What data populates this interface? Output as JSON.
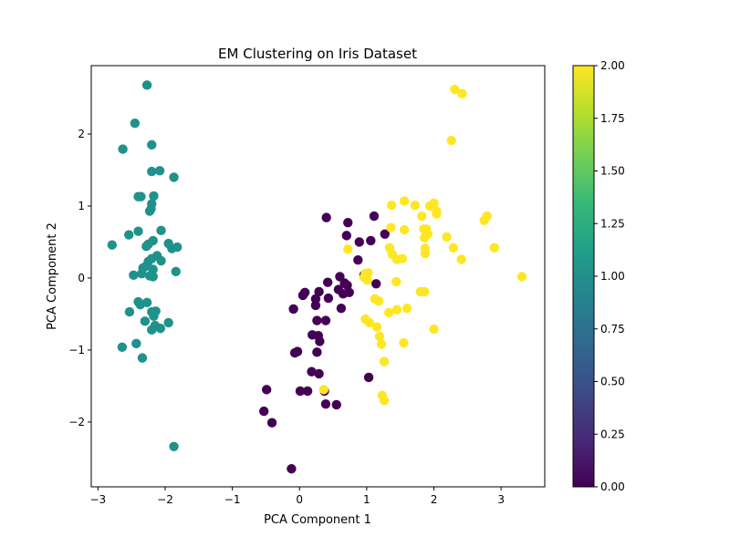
{
  "chart_data": {
    "type": "scatter",
    "title": "EM Clustering on Iris Dataset",
    "xlabel": "PCA Component 1",
    "ylabel": "PCA Component 2",
    "xlim": [
      -3.1,
      3.65
    ],
    "ylim": [
      -2.9,
      2.95
    ],
    "xticks": [
      -3,
      -2,
      -1,
      0,
      1,
      2,
      3
    ],
    "yticks": [
      -2,
      -1,
      0,
      1,
      2
    ],
    "xtick_labels": [
      "−3",
      "−2",
      "−1",
      "0",
      "1",
      "2",
      "3"
    ],
    "ytick_labels": [
      "−2",
      "−1",
      "0",
      "1",
      "2"
    ],
    "grid": false,
    "colormap": "viridis",
    "colorbar": {
      "range": [
        0.0,
        2.0
      ],
      "ticks": [
        "0.00",
        "0.25",
        "0.50",
        "0.75",
        "1.00",
        "1.25",
        "1.50",
        "1.75",
        "2.00"
      ],
      "stops": [
        "#440154",
        "#482878",
        "#3e4a89",
        "#31688e",
        "#26828e",
        "#1f9e89",
        "#35b779",
        "#6ece58",
        "#b5de2b",
        "#fde725"
      ]
    },
    "series": [
      {
        "cluster": 1,
        "color": "#21918c",
        "points": [
          [
            -2.27,
            2.68
          ],
          [
            -2.45,
            2.15
          ],
          [
            -2.63,
            1.79
          ],
          [
            -2.2,
            1.85
          ],
          [
            -2.2,
            1.48
          ],
          [
            -2.08,
            1.49
          ],
          [
            -1.87,
            1.4
          ],
          [
            -2.4,
            1.13
          ],
          [
            -2.36,
            1.13
          ],
          [
            -2.17,
            1.14
          ],
          [
            -2.2,
            1.03
          ],
          [
            -2.21,
            0.96
          ],
          [
            -2.23,
            0.93
          ],
          [
            -2.54,
            0.6
          ],
          [
            -2.4,
            0.65
          ],
          [
            -2.06,
            0.66
          ],
          [
            -2.79,
            0.46
          ],
          [
            -2.28,
            0.44
          ],
          [
            -2.25,
            0.47
          ],
          [
            -2.18,
            0.52
          ],
          [
            -1.95,
            0.48
          ],
          [
            -1.9,
            0.41
          ],
          [
            -1.82,
            0.43
          ],
          [
            -2.12,
            0.31
          ],
          [
            -2.2,
            0.27
          ],
          [
            -2.25,
            0.23
          ],
          [
            -2.06,
            0.24
          ],
          [
            -2.33,
            0.14
          ],
          [
            -2.29,
            0.16
          ],
          [
            -2.18,
            0.12
          ],
          [
            -2.47,
            0.04
          ],
          [
            -2.35,
            0.06
          ],
          [
            -2.23,
            0.03
          ],
          [
            -2.18,
            0.02
          ],
          [
            -1.84,
            0.09
          ],
          [
            -2.4,
            -0.33
          ],
          [
            -2.37,
            -0.37
          ],
          [
            -2.27,
            -0.34
          ],
          [
            -2.53,
            -0.47
          ],
          [
            -2.2,
            -0.47
          ],
          [
            -2.14,
            -0.46
          ],
          [
            -2.17,
            -0.53
          ],
          [
            -2.3,
            -0.6
          ],
          [
            -2.15,
            -0.66
          ],
          [
            -2.07,
            -0.7
          ],
          [
            -1.95,
            -0.62
          ],
          [
            -2.2,
            -0.72
          ],
          [
            -2.43,
            -0.91
          ],
          [
            -2.64,
            -0.96
          ],
          [
            -2.34,
            -1.11
          ],
          [
            -1.87,
            -2.34
          ]
        ]
      },
      {
        "cluster": 0,
        "color": "#440154",
        "points": [
          [
            0.4,
            0.84
          ],
          [
            0.72,
            0.77
          ],
          [
            1.11,
            0.86
          ],
          [
            1.27,
            0.61
          ],
          [
            0.7,
            0.59
          ],
          [
            0.89,
            0.5
          ],
          [
            1.06,
            0.52
          ],
          [
            0.87,
            0.25
          ],
          [
            0.6,
            0.02
          ],
          [
            0.67,
            -0.07
          ],
          [
            0.71,
            -0.1
          ],
          [
            0.42,
            -0.06
          ],
          [
            0.96,
            0.04
          ],
          [
            1.14,
            -0.08
          ],
          [
            0.58,
            -0.16
          ],
          [
            0.65,
            -0.22
          ],
          [
            0.74,
            -0.2
          ],
          [
            0.29,
            -0.19
          ],
          [
            0.08,
            -0.2
          ],
          [
            0.05,
            -0.24
          ],
          [
            0.24,
            -0.29
          ],
          [
            0.43,
            -0.28
          ],
          [
            0.24,
            -0.38
          ],
          [
            0.62,
            -0.42
          ],
          [
            -0.09,
            -0.43
          ],
          [
            0.26,
            -0.59
          ],
          [
            0.39,
            -0.59
          ],
          [
            0.19,
            -0.79
          ],
          [
            0.28,
            -0.8
          ],
          [
            0.3,
            -0.88
          ],
          [
            0.26,
            -1.03
          ],
          [
            -0.07,
            -1.04
          ],
          [
            -0.03,
            -1.02
          ],
          [
            0.18,
            -1.3
          ],
          [
            0.29,
            -1.33
          ],
          [
            0.37,
            -1.57
          ],
          [
            0.01,
            -1.57
          ],
          [
            0.12,
            -1.57
          ],
          [
            1.03,
            -1.38
          ],
          [
            0.39,
            -1.75
          ],
          [
            0.55,
            -1.76
          ],
          [
            -0.49,
            -1.55
          ],
          [
            -0.53,
            -1.85
          ],
          [
            -0.41,
            -2.01
          ],
          [
            -0.12,
            -2.65
          ]
        ]
      },
      {
        "cluster": 2,
        "color": "#fde725",
        "points": [
          [
            2.31,
            2.62
          ],
          [
            2.42,
            2.56
          ],
          [
            2.26,
            1.91
          ],
          [
            1.56,
            1.07
          ],
          [
            1.37,
            1.01
          ],
          [
            1.72,
            1.01
          ],
          [
            1.94,
            1.0
          ],
          [
            2.0,
            1.04
          ],
          [
            2.04,
            0.89
          ],
          [
            2.04,
            0.93
          ],
          [
            1.82,
            0.86
          ],
          [
            2.79,
            0.86
          ],
          [
            2.75,
            0.8
          ],
          [
            1.36,
            0.7
          ],
          [
            1.56,
            0.67
          ],
          [
            1.85,
            0.68
          ],
          [
            1.89,
            0.68
          ],
          [
            1.91,
            0.61
          ],
          [
            2.19,
            0.57
          ],
          [
            1.86,
            0.56
          ],
          [
            1.34,
            0.42
          ],
          [
            1.87,
            0.41
          ],
          [
            2.29,
            0.42
          ],
          [
            2.9,
            0.42
          ],
          [
            0.72,
            0.4
          ],
          [
            1.38,
            0.33
          ],
          [
            1.87,
            0.34
          ],
          [
            1.45,
            0.26
          ],
          [
            1.53,
            0.27
          ],
          [
            2.41,
            0.26
          ],
          [
            3.31,
            0.02
          ],
          [
            0.98,
            0.06
          ],
          [
            1.02,
            0.07
          ],
          [
            0.96,
            0.01
          ],
          [
            1.01,
            -0.03
          ],
          [
            1.44,
            -0.05
          ],
          [
            1.8,
            -0.19
          ],
          [
            1.86,
            -0.19
          ],
          [
            1.12,
            -0.29
          ],
          [
            1.18,
            -0.32
          ],
          [
            1.33,
            -0.48
          ],
          [
            1.45,
            -0.44
          ],
          [
            1.6,
            -0.42
          ],
          [
            0.98,
            -0.57
          ],
          [
            1.04,
            -0.62
          ],
          [
            1.15,
            -0.68
          ],
          [
            2.0,
            -0.71
          ],
          [
            1.19,
            -0.81
          ],
          [
            1.22,
            -0.92
          ],
          [
            1.55,
            -0.9
          ],
          [
            1.26,
            -1.16
          ],
          [
            0.36,
            -1.55
          ],
          [
            1.23,
            -1.63
          ],
          [
            1.26,
            -1.7
          ]
        ]
      }
    ]
  }
}
